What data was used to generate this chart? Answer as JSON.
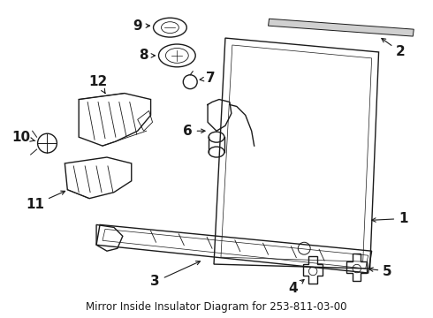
{
  "title": "Mirror Inside Insulator Diagram for 253-811-03-00",
  "bg_color": "#ffffff",
  "line_color": "#1a1a1a",
  "font_size_label": 11,
  "font_size_title": 8.5
}
